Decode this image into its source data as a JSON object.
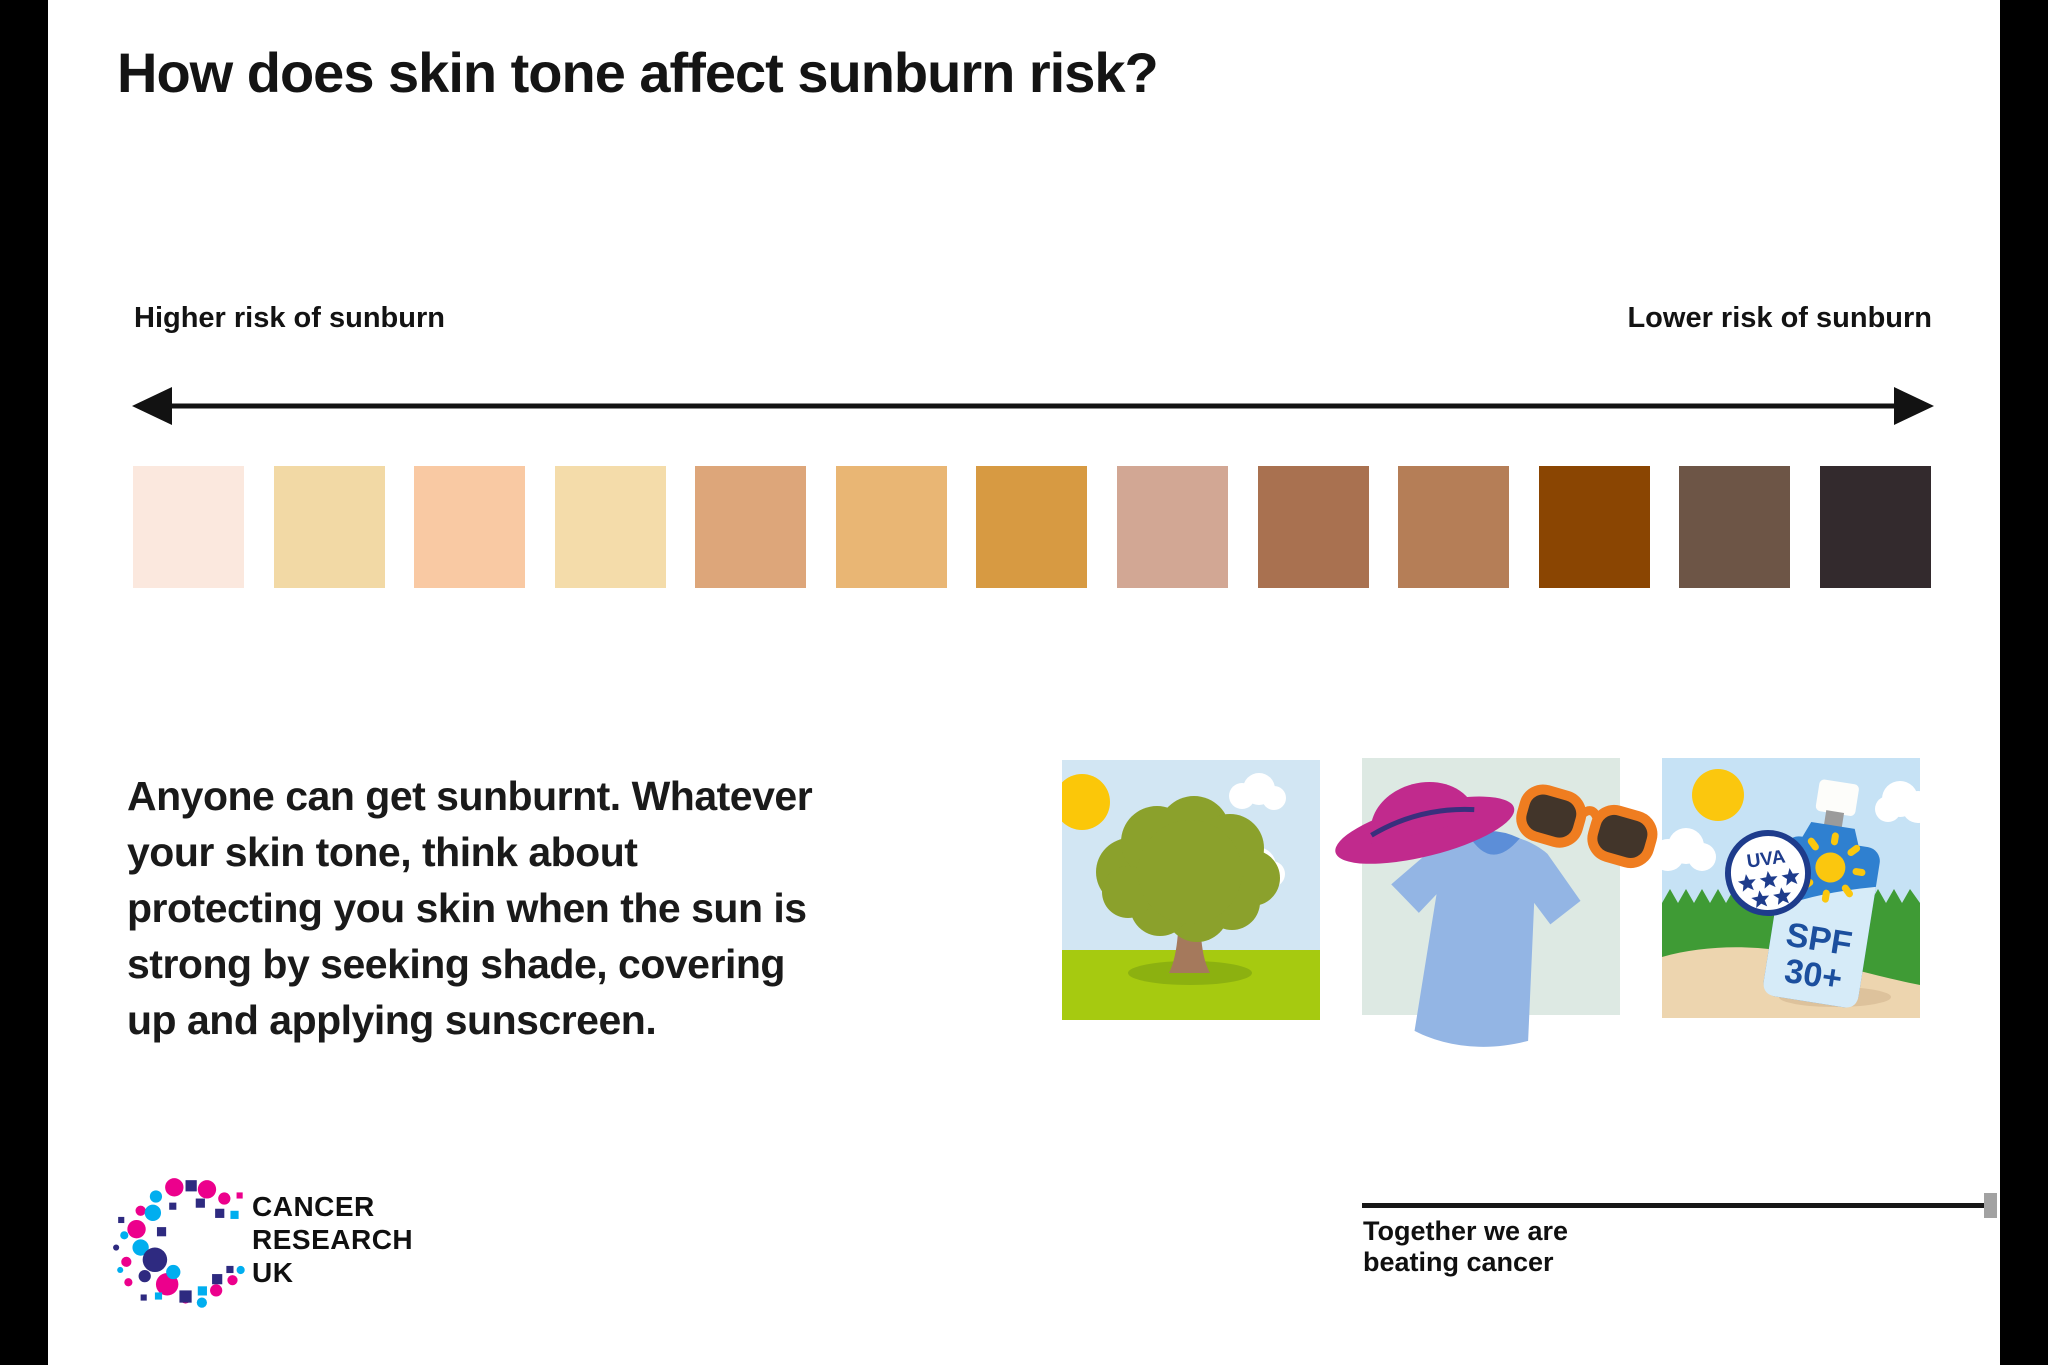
{
  "title": "How does skin tone affect sunburn risk?",
  "scale": {
    "left_label": "Higher risk of sunburn",
    "right_label": "Lower risk of sunburn",
    "swatches": [
      "#fbe8de",
      "#f2d9a5",
      "#f9c9a3",
      "#f4dcaa",
      "#dda67a",
      "#e9b674",
      "#d79a42",
      "#d2a794",
      "#a97150",
      "#b57e57",
      "#8a4502",
      "#6d5546",
      "#332a2d"
    ]
  },
  "body": {
    "lines": [
      "Anyone can get sunburnt. Whatever",
      "your skin tone, think about",
      "protecting you skin when the sun is",
      "strong by seeking shade, covering",
      "up and applying sunscreen."
    ]
  },
  "illustrations": {
    "sunscreen": {
      "uva": "UVA",
      "spf_line1": "SPF",
      "spf_line2": "30+"
    }
  },
  "footer": {
    "logo_lines": [
      "CANCER",
      "RESEARCH",
      "UK"
    ],
    "tagline_lines": [
      "Together we are",
      "beating cancer"
    ]
  },
  "palette": {
    "pillar": "#000000",
    "text": "#171717",
    "logo_pink": "#ec008c",
    "logo_blue": "#00aeef",
    "logo_navy": "#2e2a80",
    "hat_magenta": "#c12a8d",
    "sunglasses_orange": "#ef7d20",
    "tshirt_blue": "#93b5e4",
    "bottle_blue": "#2f80d0",
    "sun_yellow": "#fbc70e",
    "grass_green": "#3f9b35",
    "tile_mint": "#dde9e3",
    "sand": "#edd5af"
  }
}
